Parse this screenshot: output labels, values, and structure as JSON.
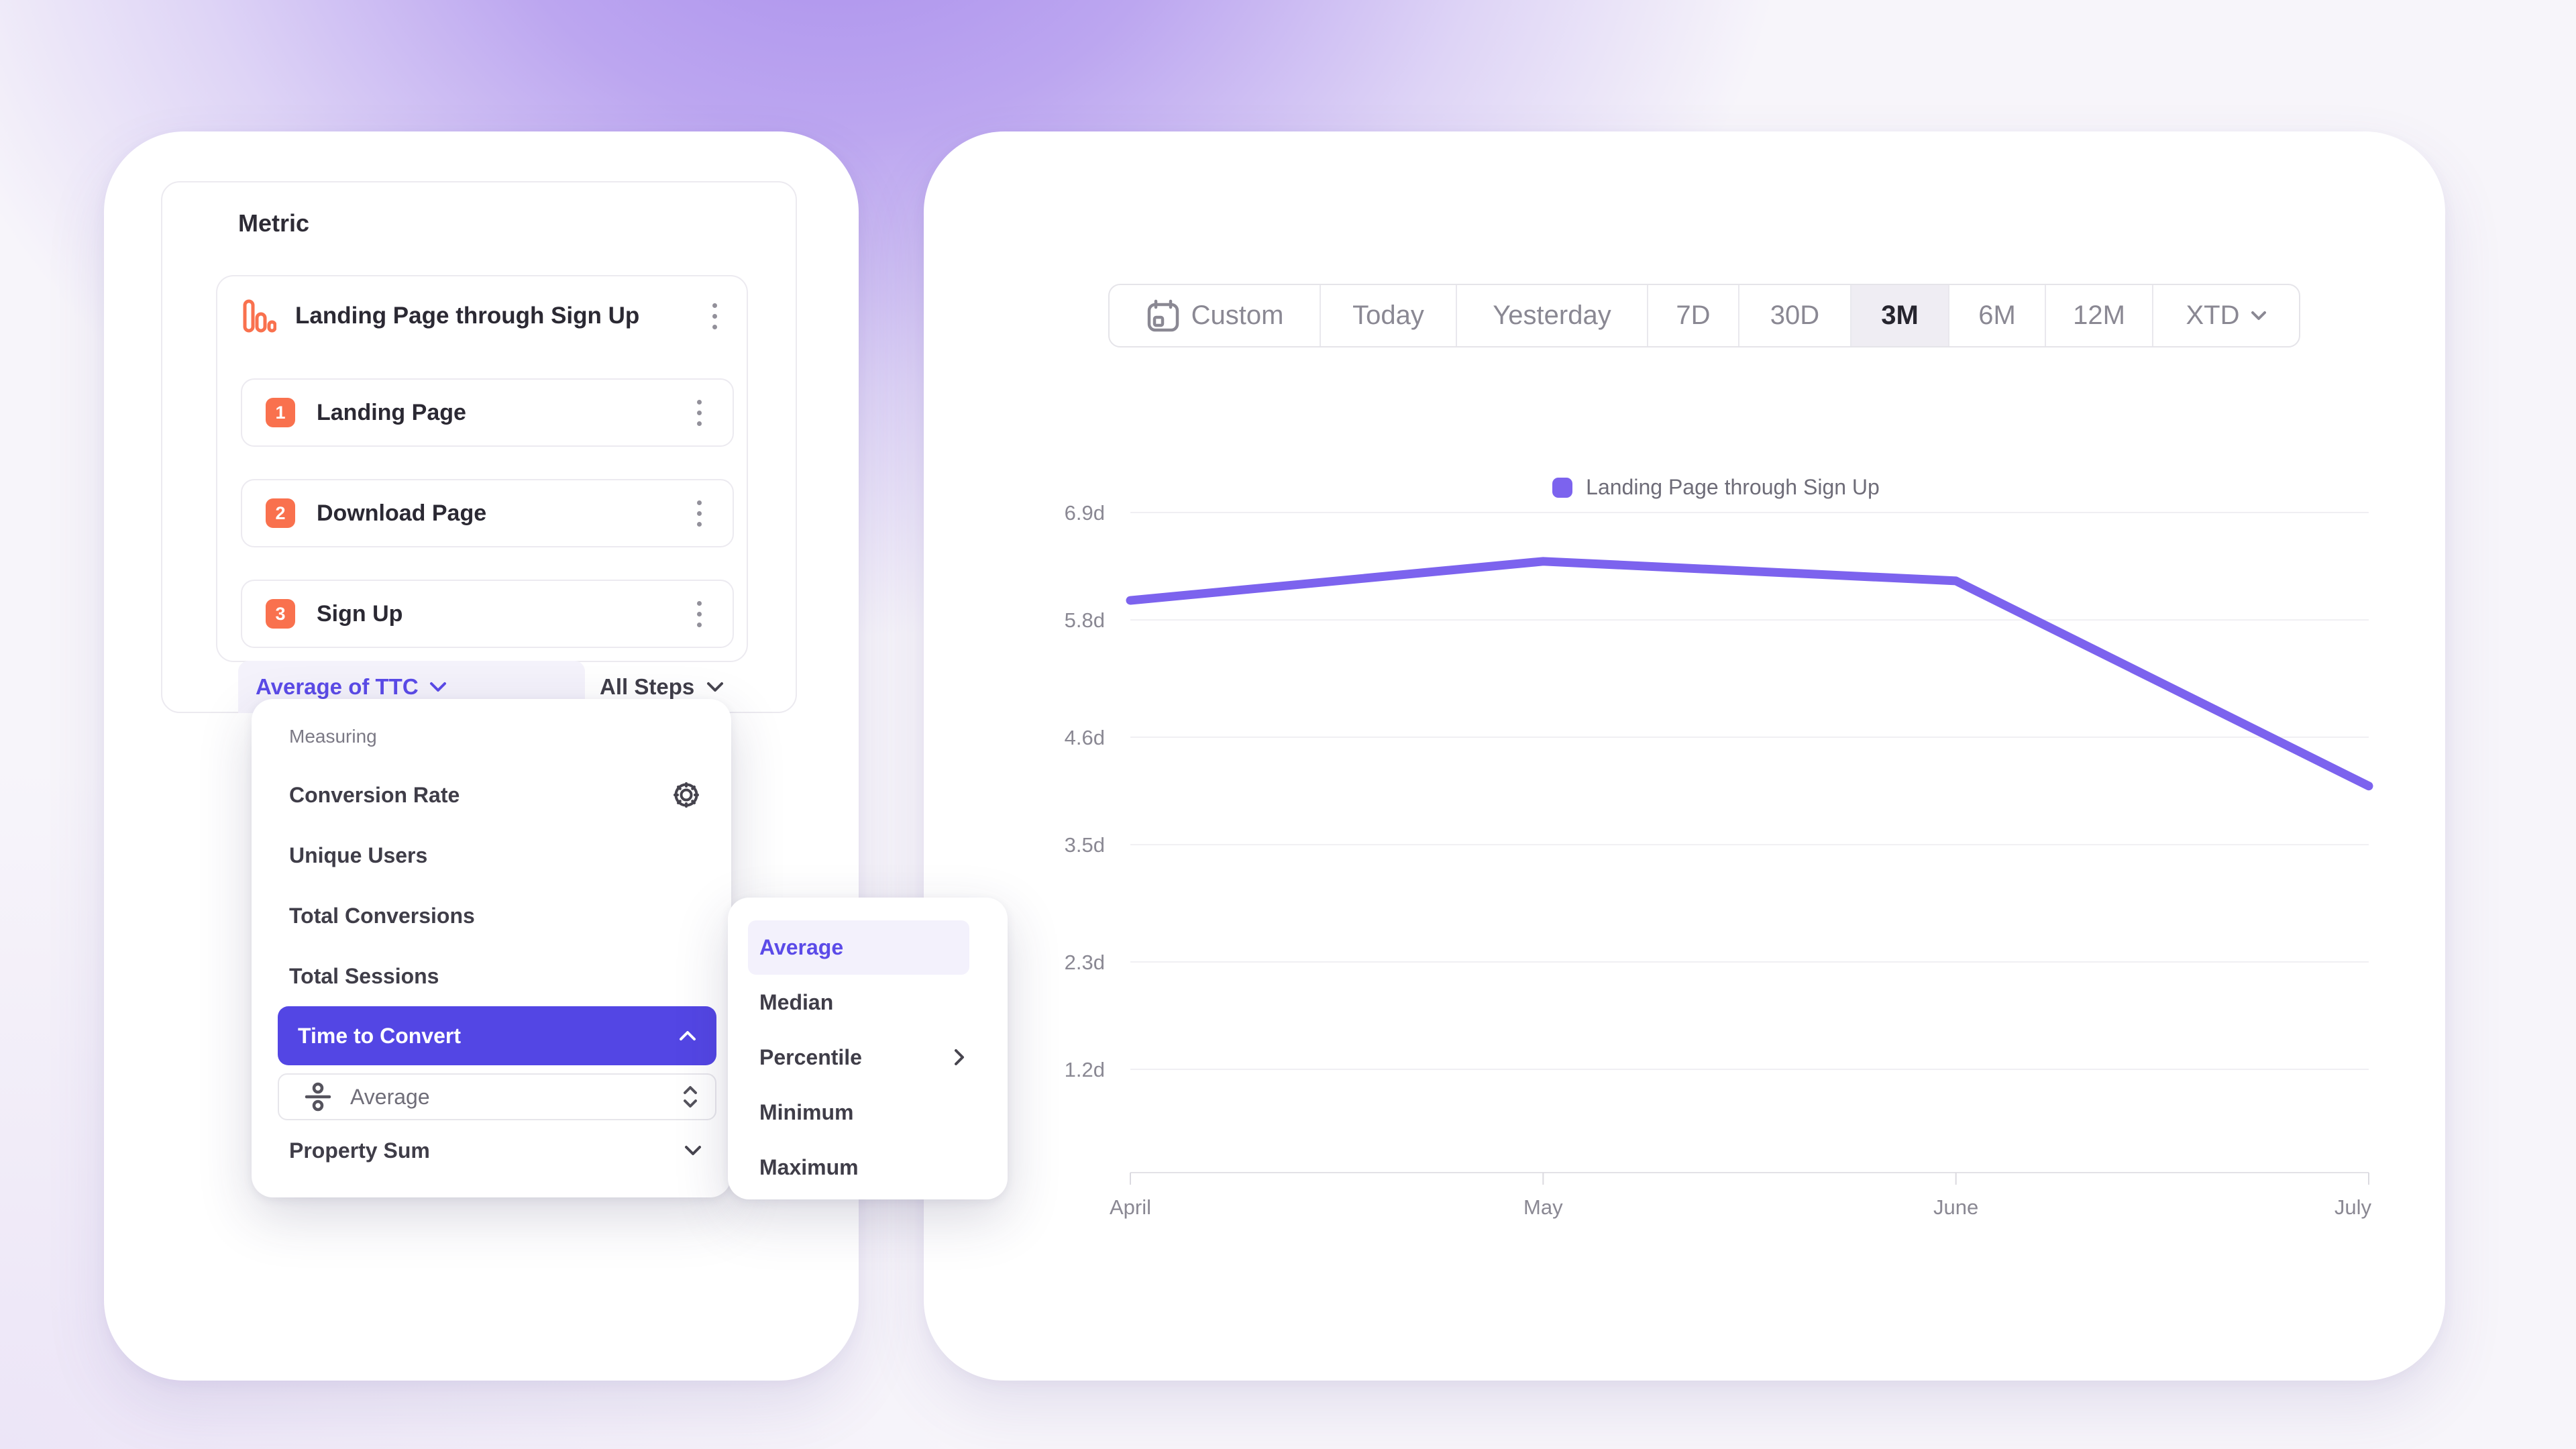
{
  "left_panel": {
    "title": "Metric",
    "funnel": {
      "name": "Landing Page through Sign Up",
      "steps": [
        {
          "index": "1",
          "label": "Landing Page"
        },
        {
          "index": "2",
          "label": "Download Page"
        },
        {
          "index": "3",
          "label": "Sign Up"
        }
      ]
    },
    "measurement_dropdown": "Average of TTC",
    "steps_dropdown": "All Steps"
  },
  "measuring_menu": {
    "heading": "Measuring",
    "items": {
      "conversion_rate": "Conversion Rate",
      "unique_users": "Unique Users",
      "total_conversions": "Total Conversions",
      "total_sessions": "Total Sessions",
      "time_to_convert": "Time to Convert",
      "property_sum": "Property Sum"
    },
    "selected_item": "Time to Convert",
    "aggregation_value": "Average"
  },
  "aggregation_submenu": {
    "items": {
      "average": "Average",
      "median": "Median",
      "percentile": "Percentile",
      "minimum": "Minimum",
      "maximum": "Maximum"
    },
    "selected_item": "Average"
  },
  "date_toolbar": {
    "options": {
      "custom": "Custom",
      "today": "Today",
      "yesterday": "Yesterday",
      "d7": "7D",
      "d30": "30D",
      "m3": "3M",
      "m6": "6M",
      "m12": "12M",
      "xtd": "XTD"
    },
    "selected_option": "3M"
  },
  "chart_data": {
    "type": "line",
    "legend": "Landing Page through Sign Up",
    "series_color": "#7c63ee",
    "x": [
      "April",
      "May",
      "June",
      "July"
    ],
    "series": [
      {
        "name": "Landing Page through Sign Up",
        "values": [
          6.0,
          6.4,
          6.2,
          4.1
        ]
      }
    ],
    "unit": "days",
    "y_ticks": [
      {
        "label": "6.9d",
        "value": 6.9
      },
      {
        "label": "5.8d",
        "value": 5.8
      },
      {
        "label": "4.6d",
        "value": 4.6
      },
      {
        "label": "3.5d",
        "value": 3.5
      },
      {
        "label": "2.3d",
        "value": 2.3
      },
      {
        "label": "1.2d",
        "value": 1.2
      }
    ],
    "ylim": [
      1.2,
      6.9
    ],
    "grid": "horizontal",
    "legend_position": "top-center"
  },
  "colors": {
    "accent_purple": "#5346e4",
    "text_purple": "#5b4be8",
    "line_purple": "#7c63ee",
    "step_orange": "#f9714e",
    "pill_bg": "#f4f2fb",
    "toolbar_selected_bg": "#efedf3"
  }
}
